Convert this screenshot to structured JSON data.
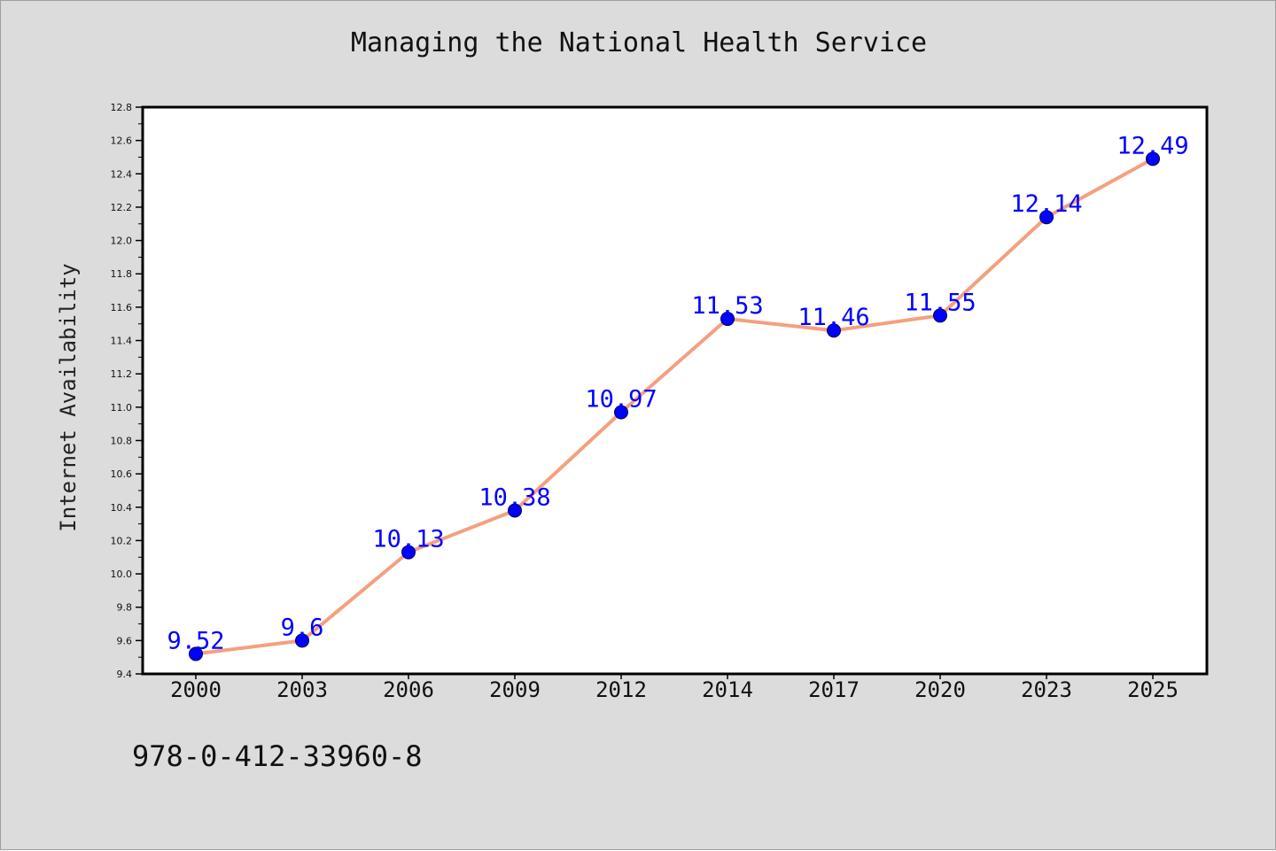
{
  "page": {
    "title": "Managing the National Health Service",
    "identifier": "978-0-412-33960-8"
  },
  "chart_data": {
    "type": "line",
    "title": "Managing the National Health Service",
    "xlabel": "",
    "ylabel": "Internet Availability",
    "categories": [
      "2000",
      "2003",
      "2006",
      "2009",
      "2012",
      "2014",
      "2017",
      "2020",
      "2023",
      "2025"
    ],
    "series": [
      {
        "values": [
          9.52,
          9.6,
          10.13,
          10.38,
          10.97,
          11.53,
          11.46,
          11.55,
          12.14,
          12.49
        ],
        "labels": [
          "9.52",
          "9.6",
          "10.13",
          "10.38",
          "10.97",
          "11.53",
          "11.46",
          "11.55",
          "12.14",
          "12.49"
        ]
      }
    ],
    "ylim": [
      9.4,
      12.8
    ],
    "yticks": [
      "9.4",
      "9.6",
      "9.8",
      "10.0",
      "10.2",
      "10.4",
      "10.6",
      "10.8",
      "11.0",
      "11.2",
      "11.4",
      "11.6",
      "11.8",
      "12.0",
      "12.2",
      "12.4",
      "12.6",
      "12.8"
    ],
    "grid": false,
    "legend": "none",
    "colors": {
      "line": "#f4a07e",
      "marker": "#0000ff",
      "data_label": "#0000ff",
      "background": "#dcdcdc",
      "plot_area": "#ffffff"
    }
  }
}
